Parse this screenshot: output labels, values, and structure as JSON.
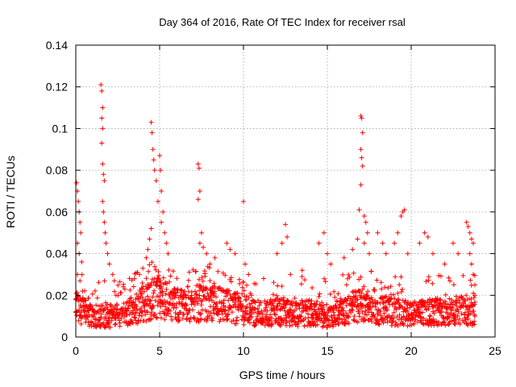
{
  "chart_data": {
    "type": "scatter",
    "title": "Day 364 of 2016, Rate Of TEC Index for receiver rsal",
    "xlabel": "GPS time / hours",
    "ylabel": "ROTI / TECUs",
    "xlim": [
      0,
      25
    ],
    "ylim": [
      0,
      0.14
    ],
    "xticks": [
      0,
      5,
      10,
      15,
      20,
      25
    ],
    "xtick_labels": [
      "0",
      "5",
      "10",
      "15",
      "20",
      "25"
    ],
    "yticks": [
      0,
      0.02,
      0.04,
      0.06,
      0.08,
      0.1,
      0.12,
      0.14
    ],
    "ytick_labels": [
      "0",
      "0.02",
      "0.04",
      "0.06",
      "0.08",
      "0.1",
      "0.12",
      "0.14"
    ],
    "grid": true,
    "marker": "+",
    "color": "#ff0000",
    "series": [
      {
        "name": "ROTI",
        "points": [
          [
            0.05,
            0.074
          ],
          [
            0.1,
            0.07
          ],
          [
            0.15,
            0.065
          ],
          [
            0.2,
            0.06
          ],
          [
            0.25,
            0.055
          ],
          [
            0.3,
            0.05
          ],
          [
            0.1,
            0.045
          ],
          [
            0.2,
            0.04
          ],
          [
            0.35,
            0.036
          ],
          [
            0.1,
            0.03
          ],
          [
            0.25,
            0.027
          ],
          [
            0.4,
            0.022
          ],
          [
            0.5,
            0.018
          ],
          [
            0.6,
            0.015
          ],
          [
            0.05,
            0.012
          ],
          [
            0.3,
            0.01
          ],
          [
            1.5,
            0.121
          ],
          [
            1.55,
            0.118
          ],
          [
            1.6,
            0.11
          ],
          [
            1.55,
            0.105
          ],
          [
            1.6,
            0.1
          ],
          [
            1.55,
            0.093
          ],
          [
            1.6,
            0.083
          ],
          [
            1.65,
            0.078
          ],
          [
            1.7,
            0.075
          ],
          [
            1.6,
            0.065
          ],
          [
            1.65,
            0.06
          ],
          [
            1.7,
            0.055
          ],
          [
            1.75,
            0.05
          ],
          [
            1.8,
            0.045
          ],
          [
            1.9,
            0.04
          ],
          [
            2.0,
            0.035
          ],
          [
            2.2,
            0.03
          ],
          [
            2.3,
            0.027
          ],
          [
            2.4,
            0.02
          ],
          [
            4.5,
            0.103
          ],
          [
            4.55,
            0.098
          ],
          [
            4.6,
            0.09
          ],
          [
            4.65,
            0.085
          ],
          [
            4.7,
            0.08
          ],
          [
            4.8,
            0.075
          ],
          [
            5.0,
            0.087
          ],
          [
            5.05,
            0.08
          ],
          [
            5.1,
            0.07
          ],
          [
            4.9,
            0.065
          ],
          [
            5.2,
            0.06
          ],
          [
            5.1,
            0.055
          ],
          [
            4.5,
            0.052
          ],
          [
            4.4,
            0.047
          ],
          [
            4.3,
            0.042
          ],
          [
            4.2,
            0.038
          ],
          [
            4.0,
            0.033
          ],
          [
            3.8,
            0.03
          ],
          [
            5.3,
            0.05
          ],
          [
            5.4,
            0.045
          ],
          [
            5.5,
            0.04
          ],
          [
            3.5,
            0.028
          ],
          [
            7.3,
            0.083
          ],
          [
            7.35,
            0.081
          ],
          [
            7.4,
            0.07
          ],
          [
            7.3,
            0.066
          ],
          [
            7.5,
            0.05
          ],
          [
            7.4,
            0.045
          ],
          [
            7.6,
            0.043
          ],
          [
            7.8,
            0.04
          ],
          [
            8.0,
            0.035
          ],
          [
            8.3,
            0.038
          ],
          [
            9.0,
            0.045
          ],
          [
            9.2,
            0.042
          ],
          [
            9.5,
            0.04
          ],
          [
            10.0,
            0.065
          ],
          [
            10.1,
            0.035
          ],
          [
            10.3,
            0.03
          ],
          [
            12.0,
            0.04
          ],
          [
            12.3,
            0.045
          ],
          [
            12.5,
            0.054
          ],
          [
            12.6,
            0.048
          ],
          [
            12.8,
            0.03
          ],
          [
            13.5,
            0.032
          ],
          [
            14.5,
            0.045
          ],
          [
            14.8,
            0.05
          ],
          [
            15.0,
            0.04
          ],
          [
            15.2,
            0.035
          ],
          [
            16.0,
            0.038
          ],
          [
            16.5,
            0.042
          ],
          [
            17.0,
            0.106
          ],
          [
            17.05,
            0.105
          ],
          [
            17.1,
            0.098
          ],
          [
            17.0,
            0.09
          ],
          [
            17.05,
            0.086
          ],
          [
            17.1,
            0.082
          ],
          [
            17.0,
            0.073
          ],
          [
            16.9,
            0.061
          ],
          [
            17.2,
            0.058
          ],
          [
            17.3,
            0.055
          ],
          [
            17.4,
            0.05
          ],
          [
            17.2,
            0.045
          ],
          [
            17.5,
            0.04
          ],
          [
            16.8,
            0.047
          ],
          [
            18.0,
            0.05
          ],
          [
            18.3,
            0.045
          ],
          [
            18.5,
            0.04
          ],
          [
            19.0,
            0.045
          ],
          [
            19.2,
            0.05
          ],
          [
            19.5,
            0.06
          ],
          [
            19.6,
            0.061
          ],
          [
            19.4,
            0.058
          ],
          [
            19.8,
            0.04
          ],
          [
            20.5,
            0.045
          ],
          [
            20.8,
            0.05
          ],
          [
            21.0,
            0.048
          ],
          [
            21.3,
            0.04
          ],
          [
            22.0,
            0.035
          ],
          [
            22.5,
            0.045
          ],
          [
            22.8,
            0.04
          ],
          [
            23.3,
            0.055
          ],
          [
            23.4,
            0.053
          ],
          [
            23.5,
            0.05
          ],
          [
            23.6,
            0.047
          ],
          [
            23.7,
            0.045
          ],
          [
            23.5,
            0.04
          ],
          [
            23.6,
            0.035
          ],
          [
            23.7,
            0.03
          ],
          [
            23.8,
            0.025
          ],
          [
            23.8,
            0.02
          ],
          [
            23.7,
            0.015
          ],
          [
            23.8,
            0.01
          ]
        ],
        "band": {
          "description": "dense background cloud of points",
          "baseline_by_hour": [
            [
              0,
              0.015
            ],
            [
              1,
              0.01
            ],
            [
              2,
              0.01
            ],
            [
              3,
              0.011
            ],
            [
              4,
              0.016
            ],
            [
              5,
              0.02
            ],
            [
              6,
              0.015
            ],
            [
              7,
              0.016
            ],
            [
              8,
              0.016
            ],
            [
              9,
              0.015
            ],
            [
              10,
              0.013
            ],
            [
              11,
              0.011
            ],
            [
              12,
              0.012
            ],
            [
              13,
              0.011
            ],
            [
              14,
              0.012
            ],
            [
              15,
              0.01
            ],
            [
              16,
              0.012
            ],
            [
              17,
              0.015
            ],
            [
              18,
              0.013
            ],
            [
              19,
              0.012
            ],
            [
              20,
              0.011
            ],
            [
              21,
              0.012
            ],
            [
              22,
              0.012
            ],
            [
              23,
              0.013
            ],
            [
              23.8,
              0.012
            ]
          ],
          "x_start": 0.0,
          "x_end": 23.8
        }
      }
    ]
  }
}
